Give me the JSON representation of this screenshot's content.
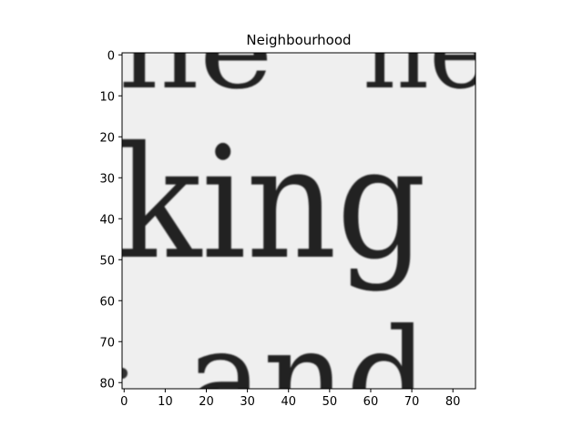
{
  "chart_data": {
    "type": "heatmap",
    "title": "Neighbourhood",
    "xlabel": "",
    "ylabel": "",
    "xlim": [
      0,
      86
    ],
    "ylim": [
      82,
      0
    ],
    "colormap": "gray",
    "grid": false,
    "x_ticks": [
      0,
      10,
      20,
      30,
      40,
      50,
      60,
      70,
      80
    ],
    "y_ticks": [
      0,
      10,
      20,
      30,
      40,
      50,
      60,
      70,
      80
    ],
    "image_content": {
      "description_text_rows": [
        {
          "text": "ne  ne",
          "row_center": 3
        },
        {
          "text": "king",
          "row_center": 46
        },
        {
          "text": "and",
          "row_center": 84
        }
      ]
    }
  }
}
